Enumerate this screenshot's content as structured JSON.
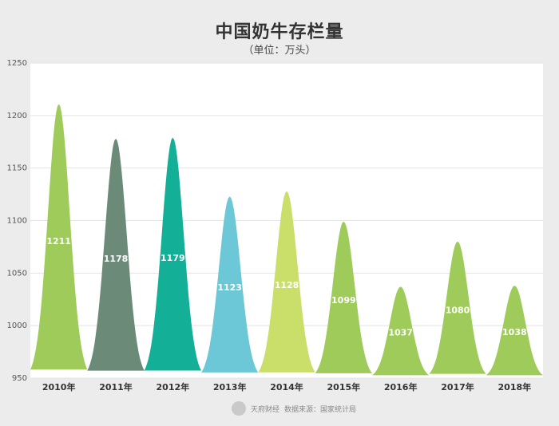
{
  "chart_data": {
    "type": "area",
    "title": "中国奶牛存栏量",
    "subtitle": "（单位：万头）",
    "categories": [
      "2010年",
      "2011年",
      "2012年",
      "2013年",
      "2014年",
      "2015年",
      "2016年",
      "2017年",
      "2018年"
    ],
    "values": [
      1211,
      1178,
      1179,
      1123,
      1128,
      1099,
      1037,
      1080,
      1038
    ],
    "ylim": [
      950,
      1250
    ],
    "yticks": [
      950,
      1000,
      1050,
      1100,
      1150,
      1200,
      1250
    ],
    "grid": true,
    "colors": [
      "#9ecb5a",
      "#6b8a78",
      "#13af97",
      "#6cc7d6",
      "#c9df6a",
      "#9ecb5a",
      "#9ecb5a",
      "#9ecb5a",
      "#9ecb5a"
    ]
  },
  "source": {
    "brand": "天府财经",
    "text": "数据来源：国家统计局"
  }
}
